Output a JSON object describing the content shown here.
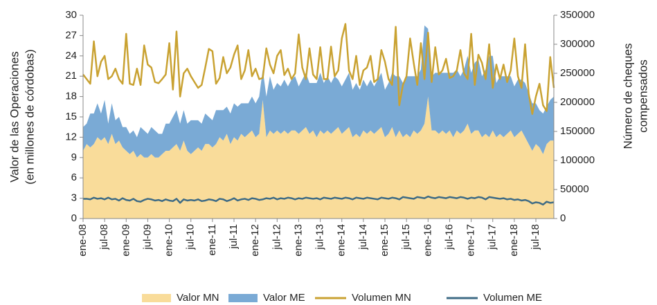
{
  "chart_data": {
    "type": "stacked_area_line",
    "y_label": [
      "Valor de las Operaciones",
      "(en millones de córdobas)"
    ],
    "y2_label": [
      "Número de cheques",
      "compensados"
    ],
    "categories": [
      "ene-08",
      null,
      null,
      null,
      null,
      null,
      "jul-08",
      null,
      null,
      null,
      null,
      null,
      "ene-09",
      null,
      null,
      null,
      null,
      null,
      "jul-09",
      null,
      null,
      null,
      null,
      null,
      "ene-10",
      null,
      null,
      null,
      null,
      null,
      "jul-10",
      null,
      null,
      null,
      null,
      null,
      "ene-11",
      null,
      null,
      null,
      null,
      null,
      "jul-11",
      null,
      null,
      null,
      null,
      null,
      "ene-12",
      null,
      null,
      null,
      null,
      null,
      "jul-12",
      null,
      null,
      null,
      null,
      null,
      "ene-13",
      null,
      null,
      null,
      null,
      null,
      "jul-13",
      null,
      null,
      null,
      null,
      null,
      "ene-14",
      null,
      null,
      null,
      null,
      null,
      "jul-14",
      null,
      null,
      null,
      null,
      null,
      "ene-15",
      null,
      null,
      null,
      null,
      null,
      "jul-15",
      null,
      null,
      null,
      null,
      null,
      "ene-16",
      null,
      null,
      null,
      null,
      null,
      "jul-16",
      null,
      null,
      null,
      null,
      null,
      "ene-17",
      null,
      null,
      null,
      null,
      null,
      "jul-17",
      null,
      null,
      null,
      null,
      null,
      "ene-18",
      null,
      null,
      null,
      null,
      null,
      "jul-18",
      null,
      null,
      null,
      null,
      null
    ],
    "ylim": [
      0,
      30
    ],
    "yticks": [
      0,
      3,
      6,
      9,
      12,
      15,
      18,
      21,
      24,
      27,
      30
    ],
    "y2lim": [
      0,
      350000
    ],
    "y2ticks": [
      0,
      50000,
      100000,
      150000,
      200000,
      250000,
      300000,
      350000
    ],
    "series": [
      {
        "name": "Valor MN",
        "color": "#f9dc9a",
        "kind": "area",
        "values": [
          10,
          11,
          10.5,
          11,
          12,
          11.5,
          12,
          11,
          12.5,
          11,
          11.5,
          10.5,
          10,
          9.5,
          10,
          9,
          9.5,
          9,
          9,
          9.5,
          9,
          9,
          9.5,
          10,
          10,
          10.5,
          11,
          10,
          11.5,
          10,
          9.5,
          10,
          10.5,
          10,
          11,
          11,
          10.5,
          11,
          12,
          11.5,
          12.5,
          11,
          12,
          11.5,
          12.5,
          12,
          12.5,
          13,
          12,
          12.5,
          17.5,
          12,
          13,
          12.5,
          13,
          12.5,
          13,
          12.5,
          13,
          13,
          12.5,
          13,
          13.5,
          12.5,
          13,
          12,
          13,
          12.5,
          13,
          12.5,
          13,
          13.5,
          12.5,
          13,
          13.5,
          12,
          12.5,
          12,
          13,
          12.5,
          13,
          12.5,
          13,
          13.5,
          12,
          12.5,
          13.5,
          12,
          13,
          12,
          12.5,
          12,
          13,
          12.5,
          13,
          14,
          18,
          13,
          13,
          12.5,
          13,
          12.5,
          13,
          12,
          13,
          12.5,
          13,
          14,
          12.5,
          13,
          13,
          12,
          12.5,
          12,
          13,
          12,
          12.5,
          12,
          12.5,
          13,
          12,
          12.5,
          13,
          12,
          11,
          10,
          11,
          10.5,
          9.5,
          11,
          11.5,
          11.5
        ]
      },
      {
        "name": "Valor ME",
        "color": "#7aaad5",
        "kind": "area",
        "values": [
          3.5,
          3,
          5,
          4.5,
          5,
          4,
          5.5,
          3,
          4.5,
          3.5,
          3.5,
          3,
          3.5,
          3,
          3,
          3,
          4,
          4,
          3.5,
          4,
          4,
          3.5,
          3,
          4,
          4,
          4.5,
          5,
          4,
          4.5,
          4,
          5,
          4.5,
          4,
          4,
          4.5,
          4,
          4,
          5,
          4,
          4.5,
          4,
          4.5,
          5,
          5,
          4.5,
          5,
          4.5,
          5,
          5,
          5.5,
          4.5,
          6,
          8,
          6.5,
          7,
          7,
          7.5,
          7,
          7.5,
          8,
          7,
          7.5,
          8,
          7.5,
          7,
          8,
          8.5,
          7.5,
          8,
          7.5,
          8,
          7,
          7,
          7.5,
          8,
          7,
          7.5,
          7,
          7.5,
          7,
          7.5,
          7,
          7.5,
          8,
          7,
          7.5,
          8,
          9,
          8,
          8,
          8.5,
          9,
          8,
          8.5,
          9,
          14.5,
          10,
          8,
          8.5,
          9,
          8.5,
          9,
          8.5,
          9.5,
          9,
          8.5,
          9,
          10,
          9,
          10,
          10.5,
          9,
          9.5,
          12,
          11,
          8,
          8.5,
          9,
          8.5,
          8,
          7.5,
          8,
          7.5,
          8,
          7.5,
          7,
          6,
          5.5,
          6,
          5.5,
          6,
          6.5
        ]
      },
      {
        "name": "Volumen MN",
        "color": "#c9a232",
        "kind": "line",
        "axis": "y2",
        "values": [
          248000,
          240000,
          232000,
          305000,
          245000,
          270000,
          280000,
          240000,
          245000,
          258000,
          240000,
          232000,
          318000,
          232000,
          230000,
          258000,
          230000,
          298000,
          265000,
          260000,
          235000,
          233000,
          240000,
          248000,
          302000,
          222000,
          322000,
          210000,
          250000,
          258000,
          245000,
          235000,
          225000,
          230000,
          260000,
          292000,
          288000,
          232000,
          242000,
          278000,
          250000,
          260000,
          282000,
          298000,
          240000,
          255000,
          290000,
          245000,
          258000,
          240000,
          242000,
          293000,
          265000,
          250000,
          280000,
          290000,
          247000,
          258000,
          240000,
          250000,
          317000,
          260000,
          240000,
          293000,
          248000,
          240000,
          295000,
          240000,
          240000,
          296000,
          245000,
          255000,
          310000,
          335000,
          255000,
          240000,
          280000,
          230000,
          255000,
          260000,
          280000,
          235000,
          240000,
          290000,
          270000,
          240000,
          230000,
          330000,
          195000,
          230000,
          245000,
          310000,
          268000,
          230000,
          302000,
          240000,
          320000,
          235000,
          295000,
          248000,
          255000,
          275000,
          242000,
          245000,
          255000,
          290000,
          250000,
          240000,
          318000,
          230000,
          282000,
          268000,
          240000,
          300000,
          225000,
          265000,
          240000,
          265000,
          235000,
          255000,
          310000,
          245000,
          225000,
          300000,
          215000,
          180000,
          210000,
          232000,
          195000,
          185000,
          278000,
          225000
        ]
      },
      {
        "name": "Volumen ME",
        "color": "#3e6b85",
        "kind": "line",
        "axis": "y2",
        "values": [
          34000,
          34000,
          33000,
          36000,
          34000,
          35000,
          33000,
          36000,
          33000,
          34000,
          31000,
          35000,
          32000,
          31000,
          34000,
          30000,
          29000,
          32000,
          34000,
          33000,
          31000,
          32000,
          30000,
          33000,
          31000,
          30000,
          34000,
          27000,
          33000,
          31000,
          32000,
          31000,
          33000,
          30000,
          31000,
          33000,
          32000,
          30000,
          34000,
          33000,
          30000,
          32000,
          35000,
          31000,
          33000,
          34000,
          32000,
          35000,
          34000,
          32000,
          33000,
          35000,
          34000,
          36000,
          33000,
          35000,
          34000,
          36000,
          35000,
          33000,
          35000,
          34000,
          36000,
          35000,
          34000,
          35000,
          33000,
          36000,
          35000,
          34000,
          36000,
          35000,
          34000,
          36000,
          35000,
          33000,
          36000,
          35000,
          34000,
          36000,
          35000,
          34000,
          33000,
          36000,
          35000,
          34000,
          36000,
          35000,
          33000,
          37000,
          36000,
          35000,
          34000,
          37000,
          36000,
          35000,
          38000,
          36000,
          35000,
          37000,
          36000,
          35000,
          37000,
          36000,
          35000,
          37000,
          36000,
          34000,
          36000,
          35000,
          37000,
          36000,
          33000,
          37000,
          36000,
          35000,
          34000,
          35000,
          33000,
          34000,
          32000,
          33000,
          31000,
          32000,
          30000,
          26000,
          28000,
          27000,
          24000,
          29000,
          27000,
          28000
        ]
      }
    ],
    "legend": "bottom"
  }
}
